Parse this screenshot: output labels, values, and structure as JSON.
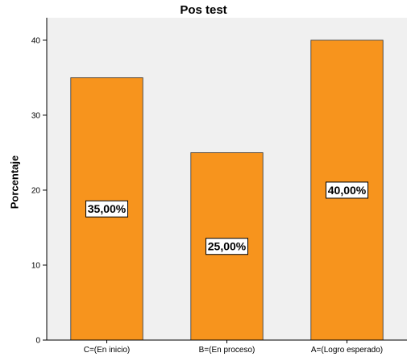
{
  "chart_data": {
    "type": "bar",
    "title": "Pos test",
    "xlabel": "",
    "ylabel": "Porcentaje",
    "categories": [
      "C=(En inicio)",
      "B=(En proceso)",
      "A=(Logro esperado)"
    ],
    "values": [
      35,
      25,
      40
    ],
    "data_labels": [
      "35,00%",
      "25,00%",
      "40,00%"
    ],
    "ylim": [
      0,
      43
    ],
    "yticks": [
      0,
      10,
      20,
      30,
      40
    ],
    "grid": false,
    "legend": "none",
    "colors": {
      "bar": "#F7941D",
      "bar_border": "#333333",
      "plot_background": "#F0F0F0",
      "label_box": "#FFFFFF"
    }
  }
}
